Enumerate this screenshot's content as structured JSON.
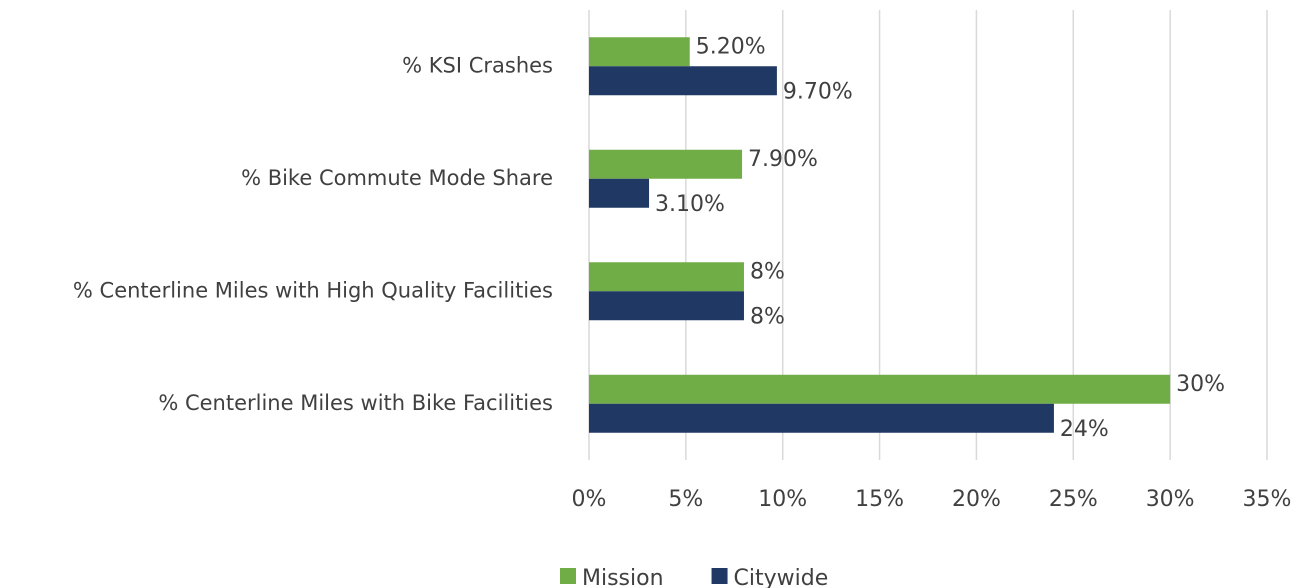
{
  "chart_data": {
    "type": "hbar",
    "categories": [
      "% KSI Crashes",
      "% Bike Commute Mode Share",
      "% Centerline Miles with High Quality Facilities",
      "% Centerline Miles with Bike Facilities"
    ],
    "series": [
      {
        "name": "Mission",
        "color": "#70ad47",
        "values": [
          5.2,
          7.9,
          8,
          30
        ],
        "value_labels": [
          "5.20%",
          "7.90%",
          "8%",
          "30%"
        ]
      },
      {
        "name": "Citywide",
        "color": "#203864",
        "values": [
          9.7,
          3.1,
          8,
          24
        ],
        "value_labels": [
          "9.70%",
          "3.10%",
          "8%",
          "24%"
        ]
      }
    ],
    "xlim": [
      0,
      35
    ],
    "xticks": [
      {
        "value": 0,
        "label": "0%"
      },
      {
        "value": 5,
        "label": "5%"
      },
      {
        "value": 10,
        "label": "10%"
      },
      {
        "value": 15,
        "label": "15%"
      },
      {
        "value": 20,
        "label": "20%"
      },
      {
        "value": 25,
        "label": "25%"
      },
      {
        "value": 30,
        "label": "30%"
      },
      {
        "value": 35,
        "label": "35%"
      }
    ],
    "grid": true,
    "legend": "bottom"
  }
}
